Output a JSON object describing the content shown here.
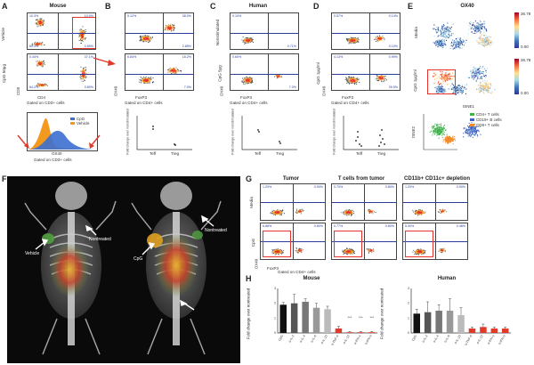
{
  "panels": {
    "A": {
      "letter": "A",
      "title": "Mouse",
      "x_caption": "Gated on CD3+ cells",
      "x_axis": "CD4",
      "y_axis": "CD8",
      "rows": [
        "Vehicle",
        "CpG 50μg"
      ],
      "pcts": [
        [
          "10.3%",
          "10.0%",
          "80.3%",
          "0.89%"
        ],
        [
          "0.44%",
          "37.1%",
          "64.2%",
          "0.80%"
        ]
      ],
      "hist_legend": [
        "CpG",
        "Vehicle"
      ],
      "hist_x": "OX40"
    },
    "B": {
      "letter": "B",
      "title": "",
      "x_caption": "Gated on CD4+ cells",
      "x_axis": "FoxP3",
      "y_axis": "OX40",
      "pcts": [
        [
          "5.12%",
          "38.0%",
          "",
          "2.85%"
        ],
        [
          "6.84%",
          "18.2%",
          "",
          "7.0%"
        ]
      ],
      "dot_y": "Fold change over nonstimulated",
      "dot_x": [
        "Teff",
        "Treg"
      ]
    },
    "C": {
      "letter": "C",
      "title": "Human",
      "x_caption": "Gated on CD4+ cells",
      "x_axis": "FoxP3",
      "y_axis": "OX40",
      "rows": [
        "Nonstimulated",
        "CpG 5μg"
      ],
      "pcts": [
        [
          "0.10%",
          "",
          "",
          "0.71%"
        ],
        [
          "0.60%",
          "",
          "",
          "7.0%"
        ]
      ],
      "dot_y": "Fold change over nonstimulated",
      "dot_x": [
        "Teff",
        "Treg"
      ]
    },
    "D": {
      "letter": "D",
      "title": "",
      "x_caption": "Gated on CD4+ cells",
      "x_axis": "FoxP3",
      "y_axis": "OX40",
      "rows": [
        "",
        "CpG 1μg/ml"
      ],
      "pcts": [
        [
          "0.57%",
          "0.14%",
          "",
          "0.10%"
        ],
        [
          "4.13%",
          "0.99%",
          "",
          "39.5%"
        ]
      ],
      "dot_y": "Fold change over nonstimulated",
      "dot_x": [
        "Teff",
        "Treg"
      ]
    },
    "E": {
      "letter": "E",
      "title": "OX40",
      "rows": [
        "Media",
        "CpG 1μg/ml"
      ],
      "scale_top": "36.78",
      "scale_bot": "0.00",
      "legend": [
        "CD4+ T cells",
        "CD19+ B cells",
        "CD8+ T cells"
      ],
      "axis_x": "tSNE1",
      "axis_y": "tSNE2"
    },
    "F": {
      "letter": "F",
      "labels": [
        "Vehicle",
        "Nontreated",
        "CpG",
        "Nontreated"
      ]
    },
    "G": {
      "letter": "G",
      "columns": [
        "Tumor",
        "T cells from tumor",
        "CD11b+ CD11c+ depletion"
      ],
      "rows": [
        "Media",
        "CpG"
      ],
      "x_caption": "Gated on CD4+ cells",
      "x_axis": "FoxP3",
      "y_axis": "OX40",
      "pcts": [
        [
          [
            "1.20%",
            "0.90%"
          ],
          [
            "0.70%",
            "0.80%"
          ],
          [
            "1.20%",
            "0.90%"
          ]
        ],
        [
          [
            "6.88%",
            "0.80%"
          ],
          [
            "0.77%",
            "0.80%"
          ],
          [
            "5.30%",
            "0.48%"
          ]
        ]
      ]
    },
    "H": {
      "letter": "H",
      "left_title": "Mouse",
      "right_title": "Human",
      "y_axis": "Fold change over nontreated",
      "sig": [
        "***",
        "***",
        "***"
      ]
    }
  },
  "chart_data": [
    {
      "type": "bar",
      "title": "Mouse",
      "categories": [
        "CpG",
        "α-IL-2",
        "α-IL-4",
        "α-IL-6",
        "α-IL-10",
        "α-TNF-α",
        "α-IL-12",
        "α-IFN-γ",
        "α-IFN-α"
      ],
      "values": [
        1.9,
        2.0,
        2.1,
        1.7,
        1.6,
        0.3,
        0.05,
        0.05,
        0.05
      ],
      "errors": [
        0.15,
        0.6,
        0.2,
        0.3,
        0.2,
        0.15,
        0.05,
        0.05,
        0.05
      ],
      "colors": [
        "#111111",
        "#555555",
        "#777777",
        "#999999",
        "#bbbbbb",
        "#e03a2a",
        "#e03a2a",
        "#e03a2a",
        "#e03a2a"
      ],
      "ylim": [
        0,
        3
      ]
    },
    {
      "type": "bar",
      "title": "Human",
      "categories": [
        "CpG",
        "α-IL-2",
        "α-IL-4",
        "α-IL-6",
        "α-IL-10",
        "α-TNF-α",
        "α-IL-12",
        "α-IFN-γ",
        "α-IFN-α"
      ],
      "values": [
        1.3,
        1.4,
        1.5,
        1.5,
        1.2,
        0.3,
        0.4,
        0.3,
        0.3
      ],
      "errors": [
        0.3,
        0.7,
        0.4,
        0.8,
        0.5,
        0.1,
        0.2,
        0.1,
        0.1
      ],
      "colors": [
        "#111111",
        "#555555",
        "#777777",
        "#999999",
        "#bbbbbb",
        "#e03a2a",
        "#e03a2a",
        "#e03a2a",
        "#e03a2a"
      ],
      "ylim": [
        0,
        3
      ]
    }
  ]
}
